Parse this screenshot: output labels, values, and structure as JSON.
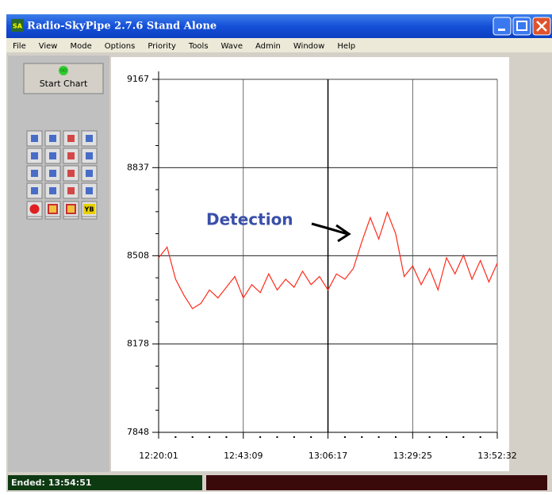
{
  "window": {
    "title": "Radio-SkyPipe  2.7.6  Stand Alone",
    "icon": "SA"
  },
  "menu": [
    "File",
    "View",
    "Mode",
    "Options",
    "Priority",
    "Tools",
    "Wave",
    "Admin",
    "Window",
    "Help"
  ],
  "toolbar": {
    "start_button": "Start Chart",
    "start_icon": "GO",
    "yb_icon": "YB"
  },
  "status": {
    "ended": "Ended: 13:54:51"
  },
  "chart_data": {
    "type": "line",
    "annotation": "Detection",
    "x": [
      44401,
      44540,
      44679,
      44817,
      44956,
      45095,
      45234,
      45373,
      45511,
      45650,
      45789,
      45928,
      46067,
      46205,
      46344,
      46483,
      46622,
      46761,
      46899,
      47038,
      47177,
      47316,
      47455,
      47593,
      47732,
      47871,
      48010,
      48149,
      48287,
      48426,
      48565,
      48704,
      48843,
      48981,
      49120,
      49259,
      49398,
      49537,
      49675,
      49814,
      49952
    ],
    "series": [
      {
        "color": "#ff2a1a",
        "values": [
          8500,
          8540,
          8420,
          8360,
          8310,
          8330,
          8380,
          8350,
          8390,
          8430,
          8350,
          8400,
          8370,
          8440,
          8380,
          8420,
          8390,
          8450,
          8400,
          8430,
          8380,
          8440,
          8420,
          8460,
          8560,
          8650,
          8570,
          8670,
          8590,
          8430,
          8470,
          8400,
          8460,
          8380,
          8500,
          8440,
          8510,
          8420,
          8490,
          8410,
          8480
        ]
      }
    ],
    "xlim": [
      44401,
      49952
    ],
    "xticks": [
      {
        "value": 44401,
        "label": "12:20:01"
      },
      {
        "value": 45789,
        "label": "12:43:09"
      },
      {
        "value": 47177,
        "label": "13:06:17"
      },
      {
        "value": 48565,
        "label": "13:29:25"
      },
      {
        "value": 49952,
        "label": "13:52:32"
      }
    ],
    "ylim": [
      7848,
      9167
    ],
    "yticks": [
      7848,
      8178,
      8508,
      8837,
      9167
    ],
    "grid": true
  }
}
